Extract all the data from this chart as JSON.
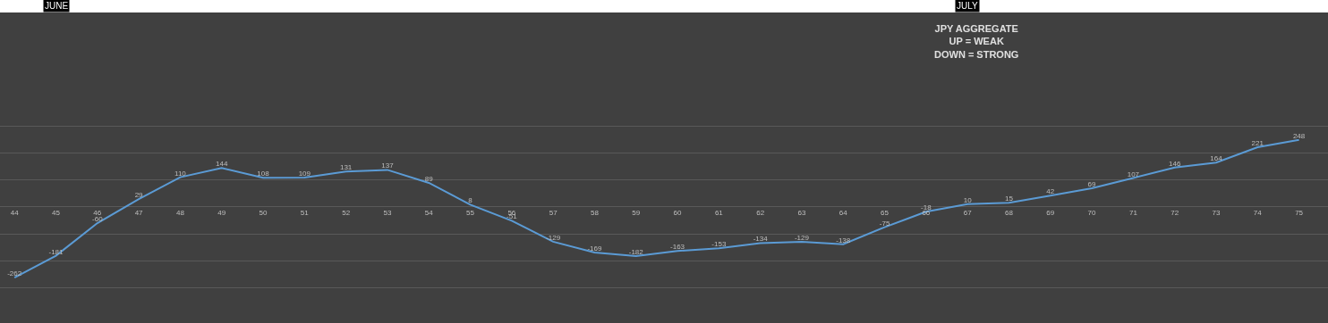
{
  "chart_data": {
    "type": "line",
    "title": "JPY AGGREGATE\nUP = WEAK\nDOWN = STRONG",
    "categories": [
      "44",
      "45",
      "46",
      "47",
      "48",
      "49",
      "50",
      "51",
      "52",
      "53",
      "54",
      "55",
      "56",
      "57",
      "58",
      "59",
      "60",
      "61",
      "62",
      "63",
      "64",
      "65",
      "66",
      "67",
      "68",
      "69",
      "70",
      "71",
      "72",
      "73",
      "74",
      "75"
    ],
    "series": [
      {
        "color": "#5b9bd5",
        "values": [
          -262,
          -181,
          -60,
          29,
          110,
          144,
          108,
          109,
          131,
          137,
          89,
          8,
          -51,
          -129,
          -169,
          -182,
          -163,
          -153,
          -134,
          -129,
          -138,
          -75,
          -18,
          10,
          15,
          42,
          69,
          107,
          146,
          164,
          221,
          248
        ]
      }
    ],
    "data_labels": true,
    "ylim": [
      -430,
      720
    ],
    "yticks": [
      {
        "value": -300,
        "label": null
      },
      {
        "value": -200,
        "label": null
      },
      {
        "value": -100,
        "label": null
      },
      {
        "value": 0,
        "label": null
      },
      {
        "value": 100,
        "label": null
      },
      {
        "value": 200,
        "label": null
      },
      {
        "value": 300,
        "label": null
      }
    ],
    "grid": "y",
    "tick_labels": "x",
    "marker": "none",
    "line_style": "solid",
    "annotations": [
      {
        "text": "JUNE",
        "x": "45"
      },
      {
        "text": "JULY",
        "x": "67"
      }
    ]
  }
}
